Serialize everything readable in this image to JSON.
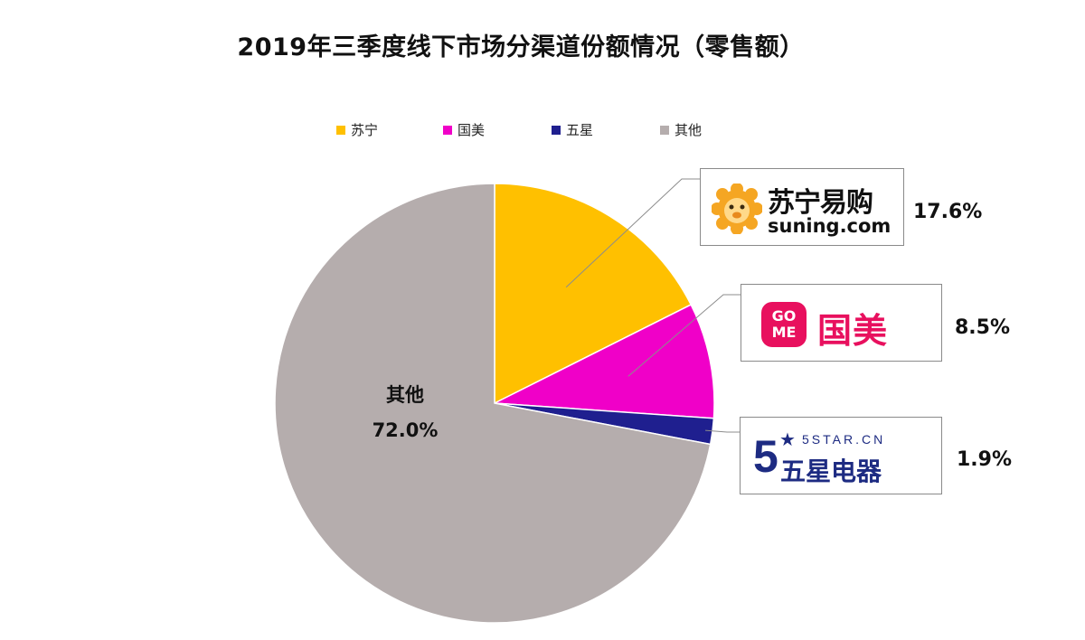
{
  "chart_data": {
    "type": "pie",
    "title": "2019年三季度线下市场分渠道份额情况（零售额）",
    "categories": [
      "苏宁",
      "国美",
      "五星",
      "其他"
    ],
    "values": [
      17.6,
      8.5,
      1.9,
      72.0
    ],
    "value_labels": [
      "17.6%",
      "8.5%",
      "1.9%",
      "72.0%"
    ],
    "colors": [
      "#FFC000",
      "#F000C8",
      "#1F1F8F",
      "#B5ADAD"
    ],
    "start_angle_deg": 0,
    "direction": "clockwise",
    "legend_position": "top"
  },
  "logos": {
    "suning": {
      "cn": "苏宁易购",
      "en": "suning.com"
    },
    "gome": {
      "badge_line1": "GO",
      "badge_line2": "ME",
      "cn": "国美"
    },
    "fivestar": {
      "numeral": "5",
      "url": "5STAR.CN",
      "cn": "五星电器"
    }
  }
}
